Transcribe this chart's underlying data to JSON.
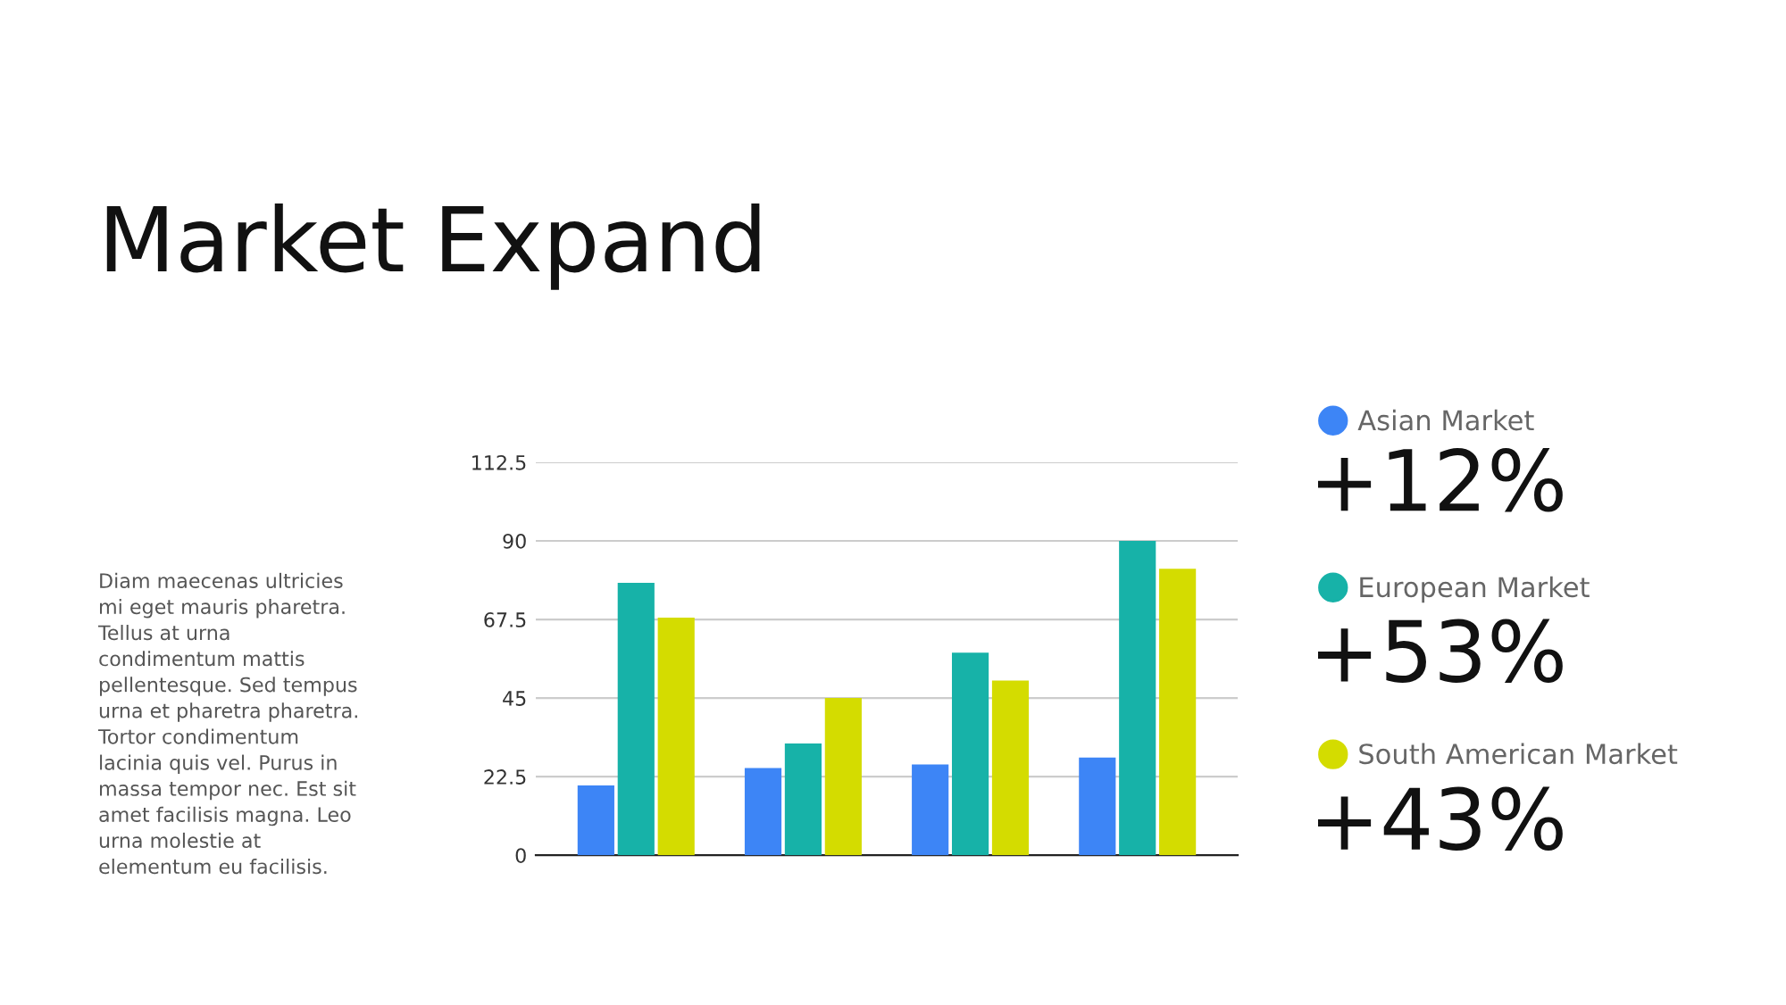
{
  "chart_data": {
    "type": "bar",
    "title": "Market Expand",
    "categories": [
      null,
      null,
      null,
      null
    ],
    "series": [
      {
        "name": "Asian Market",
        "color": "#3d85f6",
        "values": [
          20,
          25,
          26,
          28
        ]
      },
      {
        "name": "European Market",
        "color": "#17b2a8",
        "values": [
          78,
          32,
          58,
          90
        ]
      },
      {
        "name": "South American Market",
        "color": "#d4dc00",
        "values": [
          68,
          45,
          50,
          82
        ]
      }
    ],
    "ylim": [
      0,
      112.5
    ],
    "yticks": [
      0,
      22.5,
      45,
      67.5,
      90,
      112.5
    ],
    "grid": "y",
    "legend": "right",
    "annotations": [
      "Diam maecenas ultricies mi eget mauris pharetra. Tellus at urna condimentum mattis pellentesque. Sed tempus urna et pharetra pharetra. Tortor condimentum lacinia quis vel. Purus in massa tempor nec. Est sit amet facilisis magna. Leo urna molestie at elementum eu facilisis.",
      "+12%",
      "+53%",
      "+43%"
    ]
  }
}
